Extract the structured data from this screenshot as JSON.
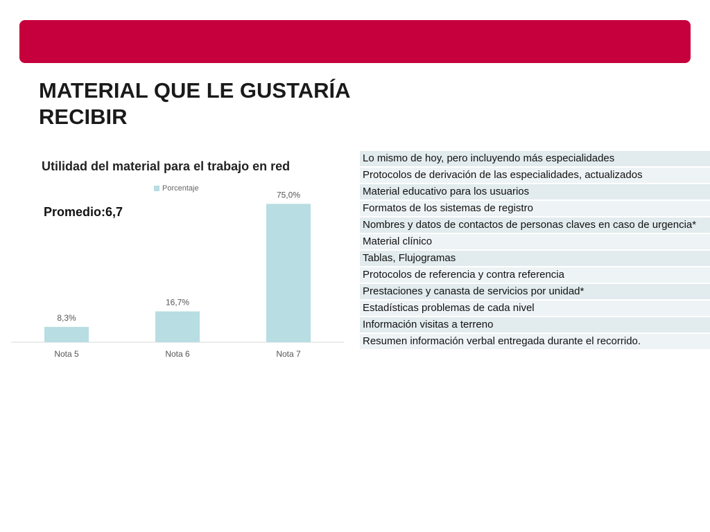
{
  "header": {
    "bar_color": "#c6003c"
  },
  "title": {
    "line1": "MATERIAL QUE LE GUSTARÍA",
    "line2": "RECIBIR"
  },
  "promedio": "Promedio:6,7",
  "chart_data": {
    "type": "bar",
    "title": "Utilidad del material para el trabajo en red",
    "categories": [
      "Nota 5",
      "Nota 6",
      "Nota 7"
    ],
    "series": [
      {
        "name": "Porcentaje",
        "values": [
          8.3,
          16.7,
          75.0
        ],
        "labels": [
          "8,3%",
          "16,7%",
          "75,0%"
        ],
        "color": "#b8dde2"
      }
    ],
    "ylim": [
      0,
      80
    ],
    "grid": false,
    "legend_position": "top"
  },
  "materials": [
    "Lo mismo de hoy, pero incluyendo más especialidades",
    "Protocolos de derivación de las especialidades, actualizados",
    "Material educativo para los usuarios",
    "Formatos de los sistemas de registro",
    "Nombres y datos de contactos de personas claves en caso de urgencia*",
    "Material clínico",
    "Tablas, Flujogramas",
    "Protocolos de referencia y contra referencia",
    "Prestaciones y canasta de servicios por unidad*",
    "Estadísticas problemas de cada nivel",
    "Información visitas a terreno",
    "Resumen información verbal entregada durante el recorrido."
  ]
}
